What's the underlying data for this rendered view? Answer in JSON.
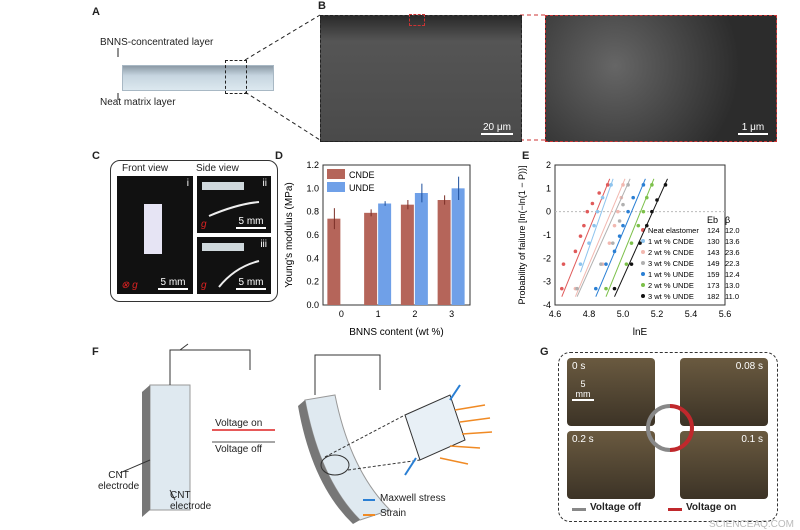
{
  "panels": {
    "A": "A",
    "B": "B",
    "C": "C",
    "D": "D",
    "E": "E",
    "F": "F",
    "G": "G"
  },
  "panelA": {
    "top_label": "BNNS-concentrated layer",
    "bottom_label": "Neat matrix layer"
  },
  "panelB": {
    "scale1": "20 μm",
    "scale2": "1 μm"
  },
  "panelC": {
    "front_view": "Front view",
    "side_view": "Side view",
    "sub_i": "i",
    "sub_ii": "ii",
    "sub_iii": "iii",
    "scale": "5 mm",
    "gravity": "g",
    "gravity_symbol": "⊗"
  },
  "panelF": {
    "voltage_on": "Voltage on",
    "voltage_off": "Voltage off",
    "cnt1": "CNT\nelectrode",
    "cnt2": "CNT\nelectrode",
    "legend_maxwell": "Maxwell stress",
    "legend_strain": "Strain",
    "maxwell_color": "#2a7fd4",
    "strain_color": "#f08a24"
  },
  "panelG": {
    "t0": "0 s",
    "t1": "0.08 s",
    "t2": "0.2 s",
    "t3": "0.1 s",
    "scale": "5 mm",
    "voltage_off": "Voltage off",
    "voltage_on": "Voltage on",
    "off_color": "#888888",
    "on_color": "#c0282c"
  },
  "watermark": "SCIENCEAQ.COM",
  "chart_data": [
    {
      "type": "bar",
      "panel": "D",
      "categories": [
        "0",
        "1",
        "2",
        "3"
      ],
      "xlabel": "BNNS content (wt %)",
      "ylabel": "Young's modulus (MPa)",
      "ylim": [
        0,
        1.2
      ],
      "yticks": [
        "0.0",
        "0.2",
        "0.4",
        "0.6",
        "0.8",
        "1.0",
        "1.2"
      ],
      "legend": "top-left",
      "series": [
        {
          "name": "CNDE",
          "color": "#b5655a",
          "values": [
            0.74,
            0.79,
            0.86,
            0.9
          ],
          "errors": [
            0.09,
            0.03,
            0.04,
            0.04
          ]
        },
        {
          "name": "UNDE",
          "color": "#6fa0e8",
          "values": [
            null,
            0.87,
            0.96,
            1.0
          ],
          "errors": [
            null,
            0.02,
            0.08,
            0.1
          ]
        }
      ]
    },
    {
      "type": "scatter",
      "panel": "E",
      "xlabel": "lnE",
      "ylabel": "Probability of failure [ln(−ln(1 − P))]",
      "xlim": [
        4.6,
        5.6
      ],
      "ylim": [
        -4,
        2
      ],
      "xticks": [
        "4.6",
        "4.8",
        "5.0",
        "5.2",
        "5.4",
        "5.6"
      ],
      "yticks": [
        "-4",
        "-3",
        "-2",
        "-1",
        "0",
        "1",
        "2"
      ],
      "legend_header": [
        "Eb",
        "β"
      ],
      "series": [
        {
          "name": "Neat elastomer",
          "Eb": "124",
          "beta": "12.0",
          "color": "#e05a5a",
          "points": [
            [
              4.64,
              -3.3
            ],
            [
              4.65,
              -2.25
            ],
            [
              4.72,
              -1.7
            ],
            [
              4.75,
              -1.05
            ],
            [
              4.77,
              -0.6
            ],
            [
              4.79,
              0
            ],
            [
              4.82,
              0.35
            ],
            [
              4.86,
              0.8
            ],
            [
              4.91,
              1.15
            ]
          ]
        },
        {
          "name": "1 wt % CNDE",
          "Eb": "130",
          "beta": "13.6",
          "color": "#8ec4ee",
          "points": [
            [
              4.75,
              -2.25
            ],
            [
              4.8,
              -1.35
            ],
            [
              4.83,
              -0.6
            ],
            [
              4.85,
              0
            ],
            [
              4.88,
              0.6
            ],
            [
              4.93,
              1.15
            ]
          ]
        },
        {
          "name": "2 wt % CNDE",
          "Eb": "143",
          "beta": "23.6",
          "color": "#f2b8b0",
          "points": [
            [
              4.72,
              -3.3
            ],
            [
              4.88,
              -2.25
            ],
            [
              4.92,
              -1.35
            ],
            [
              4.95,
              -0.6
            ],
            [
              4.97,
              0
            ],
            [
              4.99,
              0.6
            ],
            [
              5.0,
              1.15
            ]
          ]
        },
        {
          "name": "3 wt % CNDE",
          "Eb": "149",
          "beta": "22.3",
          "color": "#b0b0b0",
          "points": [
            [
              4.73,
              -3.3
            ],
            [
              4.87,
              -2.25
            ],
            [
              4.94,
              -1.35
            ],
            [
              4.98,
              -0.4
            ],
            [
              5.0,
              0.3
            ],
            [
              5.03,
              1.15
            ]
          ]
        },
        {
          "name": "1 wt % UNDE",
          "Eb": "159",
          "beta": "12.4",
          "color": "#2a7fd4",
          "points": [
            [
              4.84,
              -3.3
            ],
            [
              4.9,
              -2.25
            ],
            [
              4.95,
              -1.7
            ],
            [
              4.98,
              -1.05
            ],
            [
              5.0,
              -0.6
            ],
            [
              5.03,
              0
            ],
            [
              5.06,
              0.6
            ],
            [
              5.12,
              1.15
            ]
          ]
        },
        {
          "name": "2 wt % UNDE",
          "Eb": "173",
          "beta": "13.0",
          "color": "#7cc04a",
          "points": [
            [
              4.9,
              -3.3
            ],
            [
              5.02,
              -2.25
            ],
            [
              5.05,
              -1.35
            ],
            [
              5.09,
              -0.6
            ],
            [
              5.12,
              0
            ],
            [
              5.14,
              0.6
            ],
            [
              5.17,
              1.15
            ]
          ]
        },
        {
          "name": "3 wt % UNDE",
          "Eb": "182",
          "beta": "11.0",
          "color": "#111111",
          "points": [
            [
              4.95,
              -3.3
            ],
            [
              5.05,
              -2.25
            ],
            [
              5.1,
              -1.35
            ],
            [
              5.14,
              -0.6
            ],
            [
              5.17,
              0
            ],
            [
              5.2,
              0.5
            ],
            [
              5.25,
              1.15
            ]
          ]
        }
      ]
    }
  ]
}
